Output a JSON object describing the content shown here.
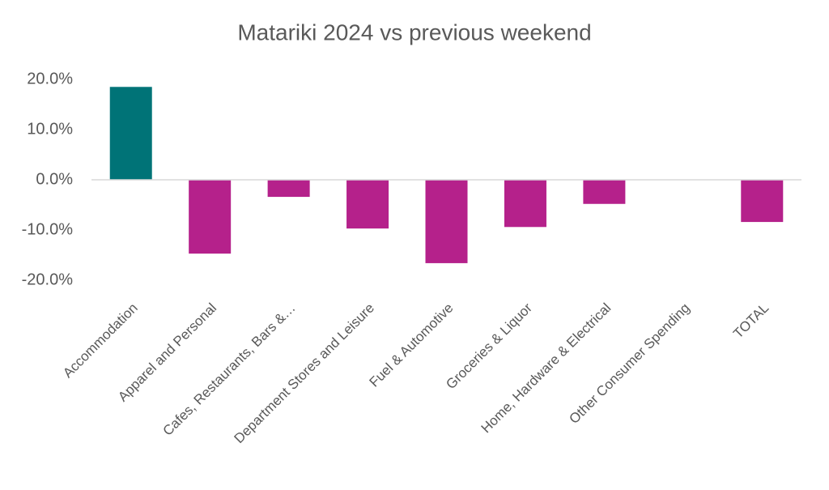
{
  "chart_data": {
    "type": "bar",
    "title": "Matariki 2024 vs previous weekend",
    "categories": [
      "Accommodation",
      "Apparel and Personal",
      "Cafes, Restaurants, Bars &…",
      "Department Stores and Leisure",
      "Fuel & Automotive",
      "Groceries & Liquor",
      "Home, Hardware & Electrical",
      "Other Consumer Spending",
      "TOTAL"
    ],
    "values": [
      18.5,
      -14.7,
      -3.4,
      -9.7,
      -16.6,
      -9.4,
      -4.8,
      0,
      -8.4
    ],
    "colors": [
      "#007377",
      "#b5218b",
      "#b5218b",
      "#b5218b",
      "#b5218b",
      "#b5218b",
      "#b5218b",
      "#b5218b",
      "#b5218b"
    ],
    "ylim": [
      -20,
      20
    ],
    "yticks": [
      {
        "value": -20,
        "label": "-20.0%"
      },
      {
        "value": -10,
        "label": "-10.0%"
      },
      {
        "value": 0,
        "label": "0.0%"
      },
      {
        "value": 10,
        "label": "10.0%"
      },
      {
        "value": 20,
        "label": "20.0%"
      }
    ],
    "grid": false
  }
}
